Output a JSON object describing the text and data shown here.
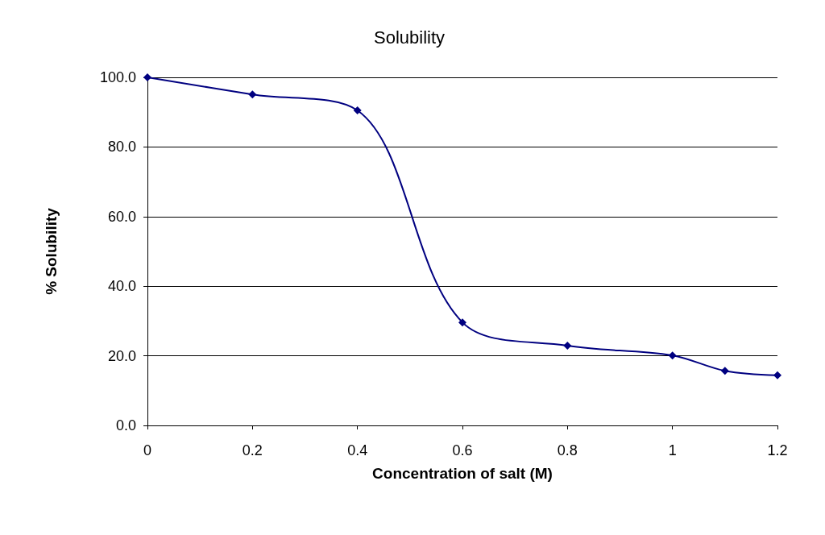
{
  "chart_data": {
    "type": "line",
    "title": "Solubility",
    "xlabel": "Concentration of salt (M)",
    "ylabel": "% Solubility",
    "x": [
      0,
      0.2,
      0.4,
      0.6,
      0.8,
      1,
      1.1,
      1.2
    ],
    "series": [
      {
        "color": "#000080",
        "values": [
          100,
          95.1,
          90.5,
          29.6,
          22.9,
          20.1,
          15.7,
          14.4
        ]
      }
    ],
    "xlim": [
      0,
      1.2
    ],
    "xticks": [
      0,
      0.2,
      0.4,
      0.6,
      0.8,
      1,
      1.2
    ],
    "ylim": [
      0,
      100
    ],
    "yticks": [
      {
        "value": 0,
        "label": "0.0"
      },
      {
        "value": 20,
        "label": "20.0"
      },
      {
        "value": 40,
        "label": "40.0"
      },
      {
        "value": 60,
        "label": "60.0"
      },
      {
        "value": 80,
        "label": "80.0"
      },
      {
        "value": 100,
        "label": "100.0"
      }
    ],
    "grid": "y",
    "marker": "diamond",
    "line_style": "solid"
  }
}
